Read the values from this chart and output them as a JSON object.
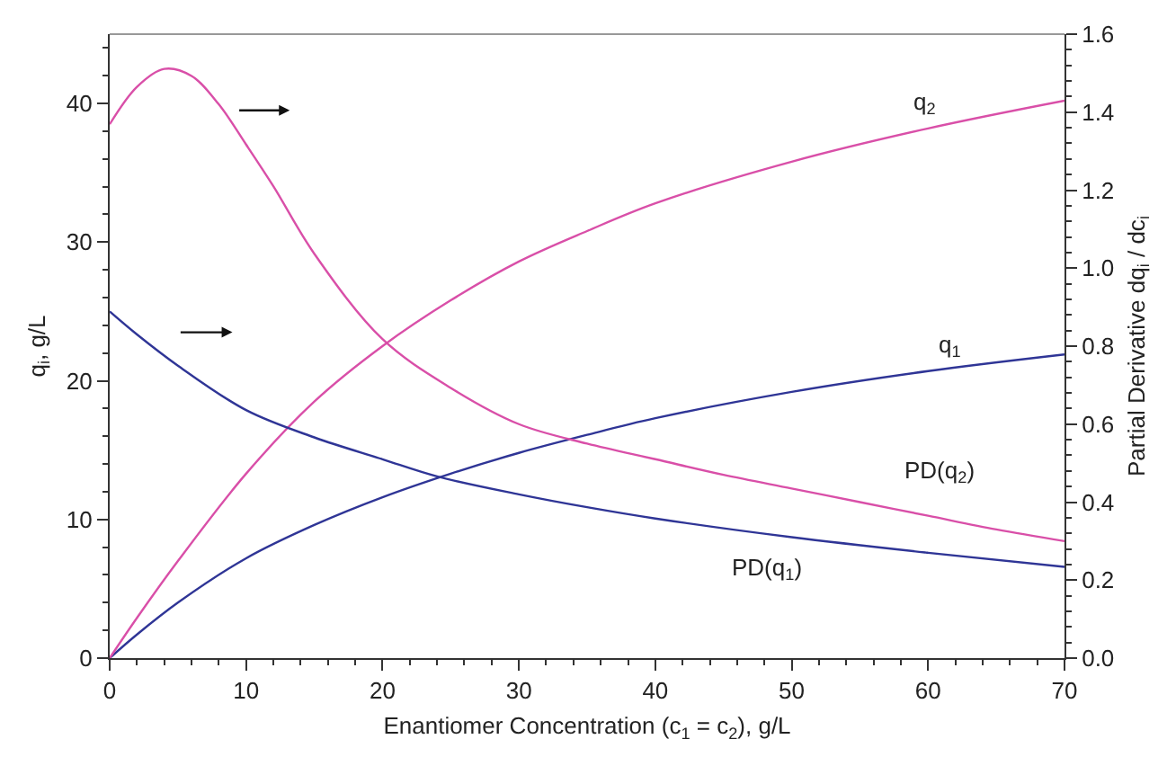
{
  "chart_data": {
    "type": "line",
    "xlabel": "Enantiomer Concentration (c$_{1}$ = c$_{2}$), g/L",
    "ylabel": "q$_{i}$, g/L",
    "y2label": "Partial Derivative dq$_{i}$ / dc$_{i}$",
    "series": [
      {
        "name": "q$_{1}$",
        "color": "#2f3596",
        "x": [
          0,
          2,
          5,
          10,
          15,
          20,
          25,
          30,
          35,
          40,
          50,
          60,
          70
        ],
        "values": [
          0,
          1.7,
          4.0,
          7.2,
          9.6,
          11.6,
          13.3,
          14.8,
          16.1,
          17.3,
          19.2,
          20.7,
          21.9
        ]
      },
      {
        "name": "q$_{2}$",
        "color": "#d94fa8",
        "x": [
          0,
          2,
          5,
          10,
          15,
          20,
          25,
          30,
          35,
          40,
          50,
          60,
          70
        ],
        "values": [
          0,
          2.9,
          7.0,
          13.3,
          18.5,
          22.5,
          25.8,
          28.6,
          30.8,
          32.8,
          35.8,
          38.2,
          40.2
        ]
      },
      {
        "name": "PD(q$_{1}$)",
        "color": "#2f3596",
        "axis": "y2",
        "x": [
          0,
          2,
          5,
          10,
          15,
          20,
          24,
          30,
          35,
          40,
          50,
          60,
          70
        ],
        "values": [
          0.889,
          0.83,
          0.75,
          0.636,
          0.566,
          0.51,
          0.466,
          0.42,
          0.387,
          0.358,
          0.31,
          0.27,
          0.234
        ]
      },
      {
        "name": "PD(q$_{2}$)",
        "color": "#d94fa8",
        "axis": "y2",
        "x": [
          0,
          2,
          4,
          6,
          8,
          10,
          12,
          15,
          20,
          25,
          30,
          35,
          40,
          45,
          50,
          55,
          60,
          65,
          70
        ],
        "values": [
          1.369,
          1.465,
          1.511,
          1.493,
          1.42,
          1.317,
          1.21,
          1.037,
          0.818,
          0.693,
          0.6,
          0.55,
          0.51,
          0.47,
          0.435,
          0.4,
          0.365,
          0.33,
          0.3
        ]
      }
    ],
    "xlim": [
      0,
      70
    ],
    "xticks": [
      0,
      {
        "value": 2,
        "label": null
      },
      {
        "value": 4,
        "label": null
      },
      {
        "value": 6,
        "label": null
      },
      {
        "value": 8,
        "label": null
      },
      10,
      {
        "value": 12,
        "label": null
      },
      {
        "value": 14,
        "label": null
      },
      {
        "value": 16,
        "label": null
      },
      {
        "value": 18,
        "label": null
      },
      20,
      {
        "value": 22,
        "label": null
      },
      {
        "value": 24,
        "label": null
      },
      {
        "value": 26,
        "label": null
      },
      {
        "value": 28,
        "label": null
      },
      30,
      {
        "value": 32,
        "label": null
      },
      {
        "value": 34,
        "label": null
      },
      {
        "value": 36,
        "label": null
      },
      {
        "value": 38,
        "label": null
      },
      40,
      {
        "value": 42,
        "label": null
      },
      {
        "value": 44,
        "label": null
      },
      {
        "value": 46,
        "label": null
      },
      {
        "value": 48,
        "label": null
      },
      50,
      {
        "value": 52,
        "label": null
      },
      {
        "value": 54,
        "label": null
      },
      {
        "value": 56,
        "label": null
      },
      {
        "value": 58,
        "label": null
      },
      60,
      {
        "value": 62,
        "label": null
      },
      {
        "value": 64,
        "label": null
      },
      {
        "value": 66,
        "label": null
      },
      {
        "value": 68,
        "label": null
      },
      70
    ],
    "ylim": [
      0,
      45
    ],
    "yticks": [
      0,
      {
        "value": 2,
        "label": null
      },
      {
        "value": 4,
        "label": null
      },
      {
        "value": 6,
        "label": null
      },
      {
        "value": 8,
        "label": null
      },
      10,
      {
        "value": 12,
        "label": null
      },
      {
        "value": 14,
        "label": null
      },
      {
        "value": 16,
        "label": null
      },
      {
        "value": 18,
        "label": null
      },
      20,
      {
        "value": 22,
        "label": null
      },
      {
        "value": 24,
        "label": null
      },
      {
        "value": 26,
        "label": null
      },
      {
        "value": 28,
        "label": null
      },
      30,
      {
        "value": 32,
        "label": null
      },
      {
        "value": 34,
        "label": null
      },
      {
        "value": 36,
        "label": null
      },
      {
        "value": 38,
        "label": null
      },
      40,
      {
        "value": 42,
        "label": null
      },
      {
        "value": 44,
        "label": null
      }
    ],
    "y2lim": [
      0,
      1.6
    ],
    "y2ticks": [
      {
        "value": 0,
        "label": "0.0"
      },
      {
        "value": 0.04,
        "label": null
      },
      {
        "value": 0.08,
        "label": null
      },
      {
        "value": 0.12,
        "label": null
      },
      {
        "value": 0.16,
        "label": null
      },
      0.2,
      {
        "value": 0.24,
        "label": null
      },
      {
        "value": 0.28,
        "label": null
      },
      {
        "value": 0.32,
        "label": null
      },
      {
        "value": 0.36,
        "label": null
      },
      0.4,
      {
        "value": 0.44,
        "label": null
      },
      {
        "value": 0.48,
        "label": null
      },
      {
        "value": 0.52,
        "label": null
      },
      {
        "value": 0.56,
        "label": null
      },
      0.6,
      {
        "value": 0.64,
        "label": null
      },
      {
        "value": 0.68,
        "label": null
      },
      {
        "value": 0.72,
        "label": null
      },
      {
        "value": 0.76,
        "label": null
      },
      0.8,
      {
        "value": 0.84,
        "label": null
      },
      {
        "value": 0.88,
        "label": null
      },
      {
        "value": 0.92,
        "label": null
      },
      {
        "value": 0.96,
        "label": null
      },
      {
        "value": 1.0,
        "label": "1.0"
      },
      {
        "value": 1.04,
        "label": null
      },
      {
        "value": 1.08,
        "label": null
      },
      {
        "value": 1.12,
        "label": null
      },
      {
        "value": 1.16,
        "label": null
      },
      1.2,
      {
        "value": 1.24,
        "label": null
      },
      {
        "value": 1.28,
        "label": null
      },
      {
        "value": 1.32,
        "label": null
      },
      {
        "value": 1.36,
        "label": null
      },
      1.4,
      {
        "value": 1.44,
        "label": null
      },
      {
        "value": 1.48,
        "label": null
      },
      {
        "value": 1.52,
        "label": null
      },
      {
        "value": 1.56,
        "label": null
      },
      1.6
    ],
    "legend": false,
    "marker": "none",
    "line_style": "solid"
  }
}
